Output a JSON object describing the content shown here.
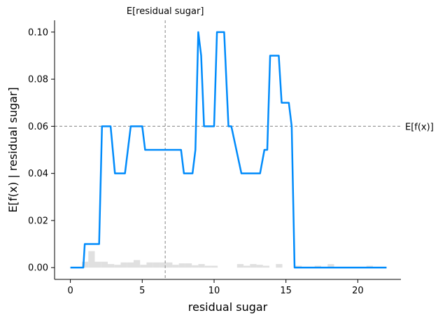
{
  "chart_data": {
    "type": "line",
    "title": "",
    "xlabel": "residual sugar",
    "ylabel": "E[f(x) | residual sugar]",
    "xlim": [
      -1.1,
      23.0
    ],
    "ylim": [
      -0.005,
      0.105
    ],
    "x_ticks": [
      0,
      5,
      10,
      15,
      20
    ],
    "x_tick_labels": [
      "0",
      "5",
      "10",
      "15",
      "20"
    ],
    "y_ticks": [
      0.0,
      0.02,
      0.04,
      0.06,
      0.08,
      0.1
    ],
    "y_tick_labels": [
      "0.00",
      "0.02",
      "0.04",
      "0.06",
      "0.08",
      "0.10"
    ],
    "grid": false,
    "colors": {
      "line": "#008bfb",
      "histogram": "#e0e0e0",
      "reference": "#999999"
    },
    "reference_lines": {
      "vertical": {
        "x": 6.6,
        "label": "E[residual sugar]"
      },
      "horizontal": {
        "y": 0.06,
        "label": "E[f(x)]"
      }
    },
    "series": [
      {
        "x": [
          0.0,
          0.9,
          1.0,
          2.0,
          2.2,
          2.8,
          3.1,
          3.8,
          4.0,
          4.2,
          5.0,
          5.2,
          5.5,
          7.7,
          7.9,
          8.5,
          8.7,
          8.9,
          9.1,
          9.3,
          9.5,
          10.0,
          10.2,
          10.7,
          11.0,
          11.2,
          11.9,
          12.0,
          13.2,
          13.5,
          13.7,
          13.9,
          14.0,
          14.5,
          14.7,
          15.2,
          15.4,
          15.6,
          15.9,
          22.0
        ],
        "y": [
          0.0,
          0.0,
          0.01,
          0.01,
          0.06,
          0.06,
          0.04,
          0.04,
          0.05,
          0.06,
          0.06,
          0.05,
          0.05,
          0.05,
          0.04,
          0.04,
          0.05,
          0.1,
          0.09,
          0.06,
          0.06,
          0.06,
          0.1,
          0.1,
          0.06,
          0.06,
          0.04,
          0.04,
          0.04,
          0.05,
          0.05,
          0.09,
          0.09,
          0.09,
          0.07,
          0.07,
          0.06,
          0.0,
          0.0,
          0.0
        ]
      }
    ],
    "histogram": {
      "bin_width": 0.45,
      "bin_starts": [
        0.8,
        1.25,
        1.7,
        2.15,
        2.6,
        3.05,
        3.5,
        3.95,
        4.4,
        4.85,
        5.3,
        5.75,
        6.2,
        6.65,
        7.1,
        7.55,
        8.0,
        8.45,
        8.9,
        9.35,
        9.8,
        10.25,
        10.7,
        11.15,
        11.6,
        12.05,
        12.5,
        12.95,
        13.4,
        13.85,
        14.3,
        14.75,
        15.2,
        15.65,
        16.1,
        16.55,
        17.0,
        17.45,
        17.9,
        18.35,
        18.8,
        19.25,
        19.7,
        20.15,
        20.6
      ],
      "heights": [
        0.0025,
        0.007,
        0.0025,
        0.0025,
        0.0015,
        0.0012,
        0.0022,
        0.0022,
        0.0032,
        0.0012,
        0.0022,
        0.0022,
        0.0022,
        0.0022,
        0.0012,
        0.0018,
        0.0018,
        0.001,
        0.0015,
        0.0008,
        0.0008,
        0.0,
        0.0,
        0.0,
        0.0015,
        0.0008,
        0.0015,
        0.0012,
        0.0008,
        0.0,
        0.0015,
        0.0,
        0.0,
        0.0008,
        0.0,
        0.0,
        0.0008,
        0.0,
        0.0015,
        0.0,
        0.0,
        0.0,
        0.0,
        0.0,
        0.0008
      ]
    }
  }
}
